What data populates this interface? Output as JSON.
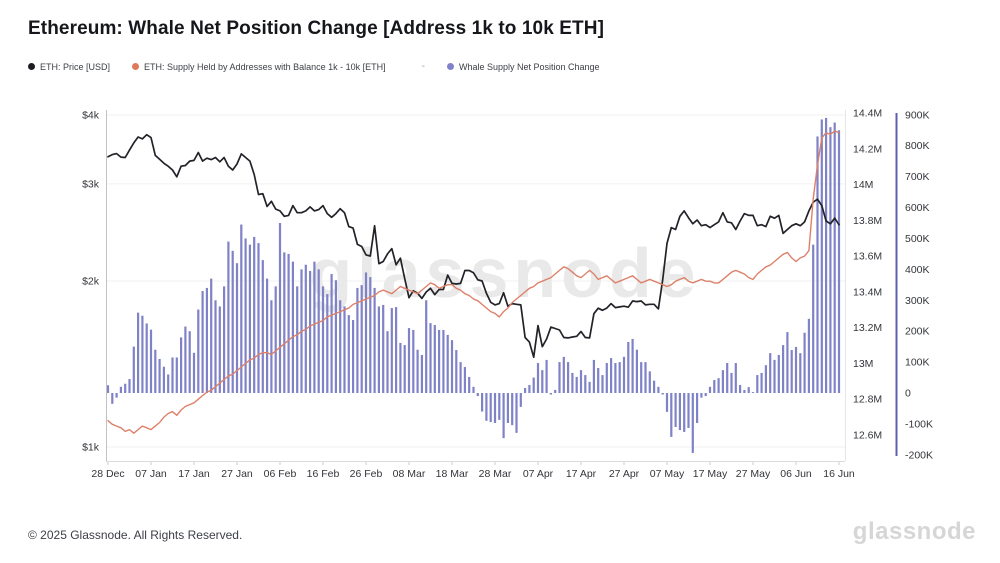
{
  "title": "Ethereum: Whale Net Position Change [Address 1k to 10k ETH]",
  "watermark": "glassnode",
  "footer": {
    "copyright": "© 2025 Glassnode. All Rights Reserved.",
    "brand": "glassnode"
  },
  "legend": [
    {
      "id": "eth-price",
      "label": "ETH: Price [USD]",
      "color": "#1c1d22",
      "marker": "dot"
    },
    {
      "id": "eth-supply-1k-10k",
      "label": "ETH: Supply Held by Addresses with Balance 1k - 10k [ETH]",
      "color": "#e0795c",
      "marker": "dot"
    },
    {
      "id": "whale-net-position-change",
      "label": "Whale Supply Net Position Change",
      "color": "#7f82c6",
      "marker": "dot",
      "separator_before": "-"
    }
  ],
  "chart_data": {
    "type": "mixed",
    "title": "Ethereum: Whale Net Position Change [Address 1k to 10k ETH]",
    "grid": "horizontal-faint",
    "x_axis": {
      "unit": "day",
      "tick_interval_days": 10,
      "tick_labels": [
        "28 Dec",
        "07 Jan",
        "17 Jan",
        "27 Jan",
        "06 Feb",
        "16 Feb",
        "26 Feb",
        "08 Mar",
        "18 Mar",
        "28 Mar",
        "07 Apr",
        "17 Apr",
        "27 Apr",
        "07 May",
        "17 May",
        "27 May",
        "06 Jun",
        "16 Jun"
      ]
    },
    "axes": {
      "price_usd": {
        "side": "left",
        "scale": "log",
        "ticks": [
          {
            "label": "$4k",
            "value": 4000
          },
          {
            "label": "$3k",
            "value": 3000
          },
          {
            "label": "$2k",
            "value": 2000
          },
          {
            "label": "$1k",
            "value": 1000
          }
        ]
      },
      "supply_eth": {
        "side": "right",
        "scale": "linear",
        "unit": "M",
        "ticks": [
          {
            "label": "14.4M",
            "value": 14.4
          },
          {
            "label": "14.2M",
            "value": 14.2
          },
          {
            "label": "14M",
            "value": 14.0
          },
          {
            "label": "13.8M",
            "value": 13.8
          },
          {
            "label": "13.6M",
            "value": 13.6
          },
          {
            "label": "13.4M",
            "value": 13.4
          },
          {
            "label": "13.2M",
            "value": 13.2
          },
          {
            "label": "13M",
            "value": 13.0
          },
          {
            "label": "12.8M",
            "value": 12.8
          },
          {
            "label": "12.6M",
            "value": 12.6
          }
        ]
      },
      "net_position_change": {
        "side": "far-right",
        "scale": "linear",
        "unit": "K",
        "axis_line_color": "#5a60ad",
        "ticks": [
          {
            "label": "900K",
            "value": 900
          },
          {
            "label": "800K",
            "value": 800
          },
          {
            "label": "700K",
            "value": 700
          },
          {
            "label": "600K",
            "value": 600
          },
          {
            "label": "500K",
            "value": 500
          },
          {
            "label": "400K",
            "value": 400
          },
          {
            "label": "300K",
            "value": 300
          },
          {
            "label": "200K",
            "value": 200
          },
          {
            "label": "100K",
            "value": 100
          },
          {
            "label": "0",
            "value": 0
          },
          {
            "label": "-100K",
            "value": -100
          },
          {
            "label": "-200K",
            "value": -200
          }
        ]
      }
    },
    "series": [
      {
        "name": "ETH: Price [USD]",
        "type": "line",
        "axis": "price_usd",
        "color": "#222329",
        "values": [
          3360,
          3390,
          3405,
          3355,
          3350,
          3455,
          3560,
          3650,
          3620,
          3685,
          3640,
          3380,
          3325,
          3270,
          3230,
          3180,
          3090,
          3230,
          3240,
          3300,
          3310,
          3420,
          3300,
          3340,
          3320,
          3350,
          3290,
          3350,
          3230,
          3180,
          3260,
          3400,
          3350,
          3300,
          3120,
          2870,
          2880,
          2730,
          2790,
          2700,
          2680,
          2620,
          2630,
          2740,
          2660,
          2660,
          2680,
          2725,
          2680,
          2695,
          2740,
          2650,
          2610,
          2650,
          2705,
          2660,
          2510,
          2495,
          2330,
          2310,
          2230,
          2220,
          2520,
          2150,
          2170,
          2240,
          2290,
          2140,
          2200,
          2020,
          1865,
          1920,
          1900,
          1860,
          1910,
          1940,
          1890,
          1930,
          1930,
          2050,
          1980,
          1975,
          1980,
          2090,
          2090,
          2070,
          2010,
          2000,
          1900,
          1830,
          1810,
          1820,
          1905,
          1800,
          1820,
          1815,
          1810,
          1580,
          1550,
          1455,
          1660,
          1520,
          1570,
          1650,
          1640,
          1630,
          1580,
          1577,
          1583,
          1588,
          1620,
          1580,
          1577,
          1745,
          1785,
          1770,
          1786,
          1820,
          1790,
          1795,
          1800,
          1793,
          1840,
          1835,
          1840,
          1810,
          1815,
          1815,
          1780,
          2010,
          2340,
          2500,
          2480,
          2620,
          2680,
          2605,
          2540,
          2580,
          2520,
          2530,
          2500,
          2530,
          2560,
          2660,
          2560,
          2550,
          2480,
          2570,
          2650,
          2630,
          2630,
          2520,
          2530,
          2510,
          2620,
          2600,
          2630,
          2440,
          2480,
          2520,
          2540,
          2520,
          2560,
          2680,
          2780,
          2815,
          2740,
          2570,
          2540,
          2600,
          2530
        ]
      },
      {
        "name": "ETH: Supply Held by Addresses with Balance 1k - 10k [ETH]",
        "type": "line",
        "axis": "supply_eth",
        "color": "#dd8069",
        "values": [
          12.68,
          12.66,
          12.65,
          12.64,
          12.62,
          12.63,
          12.61,
          12.63,
          12.65,
          12.64,
          12.63,
          12.65,
          12.67,
          12.7,
          12.72,
          12.73,
          12.71,
          12.74,
          12.76,
          12.77,
          12.78,
          12.8,
          12.82,
          12.84,
          12.85,
          12.87,
          12.89,
          12.91,
          12.93,
          12.94,
          12.96,
          12.98,
          13.0,
          13.02,
          13.03,
          13.05,
          13.06,
          13.06,
          13.05,
          13.07,
          13.09,
          13.11,
          13.13,
          13.15,
          13.16,
          13.18,
          13.19,
          13.21,
          13.22,
          13.23,
          13.24,
          13.26,
          13.27,
          13.28,
          13.29,
          13.3,
          13.31,
          13.33,
          13.34,
          13.35,
          13.36,
          13.37,
          13.38,
          13.4,
          13.41,
          13.4,
          13.39,
          13.41,
          13.43,
          13.42,
          13.41,
          13.4,
          13.39,
          13.41,
          13.43,
          13.45,
          13.44,
          13.42,
          13.43,
          13.44,
          13.44,
          13.42,
          13.41,
          13.39,
          13.38,
          13.36,
          13.35,
          13.33,
          13.31,
          13.29,
          13.28,
          13.26,
          13.29,
          13.31,
          13.34,
          13.36,
          13.38,
          13.4,
          13.42,
          13.43,
          13.45,
          13.46,
          13.47,
          13.48,
          13.5,
          13.52,
          13.54,
          13.53,
          13.51,
          13.49,
          13.48,
          13.5,
          13.52,
          13.5,
          13.47,
          13.48,
          13.49,
          13.47,
          13.45,
          13.46,
          13.47,
          13.48,
          13.49,
          13.47,
          13.45,
          13.46,
          13.47,
          13.46,
          13.45,
          13.44,
          13.43,
          13.44,
          13.46,
          13.47,
          13.48,
          13.46,
          13.45,
          13.46,
          13.47,
          13.46,
          13.46,
          13.45,
          13.45,
          13.47,
          13.49,
          13.51,
          13.52,
          13.51,
          13.5,
          13.48,
          13.47,
          13.5,
          13.52,
          13.54,
          13.55,
          13.57,
          13.59,
          13.61,
          13.62,
          13.59,
          13.57,
          13.59,
          13.6,
          13.63,
          13.92,
          14.11,
          14.26,
          14.29,
          14.28,
          14.3,
          14.29
        ]
      },
      {
        "name": "Whale Supply Net Position Change",
        "type": "bar",
        "axis": "net_position_change",
        "color": "#7f82c6",
        "values": [
          25,
          -35,
          -15,
          20,
          30,
          45,
          150,
          260,
          250,
          225,
          205,
          140,
          110,
          85,
          60,
          115,
          115,
          180,
          215,
          200,
          130,
          270,
          330,
          340,
          370,
          300,
          280,
          345,
          490,
          460,
          420,
          545,
          500,
          480,
          505,
          485,
          430,
          370,
          300,
          345,
          550,
          455,
          450,
          425,
          345,
          400,
          415,
          395,
          425,
          400,
          345,
          320,
          385,
          365,
          300,
          280,
          252,
          236,
          340,
          349,
          390,
          375,
          340,
          280,
          285,
          200,
          275,
          278,
          162,
          155,
          210,
          204,
          140,
          123,
          300,
          226,
          220,
          204,
          204,
          188,
          171,
          139,
          100,
          84,
          52,
          20,
          -10,
          -60,
          -90,
          -94,
          -97,
          -87,
          -146,
          -97,
          -104,
          -129,
          -45,
          16,
          26,
          50,
          97,
          74,
          107,
          -5,
          10,
          100,
          117,
          100,
          65,
          52,
          74,
          58,
          36,
          107,
          81,
          58,
          97,
          113,
          97,
          100,
          117,
          165,
          175,
          140,
          100,
          100,
          70,
          40,
          20,
          -5,
          -61,
          -142,
          -110,
          -120,
          -126,
          -113,
          -194,
          -97,
          -15,
          -10,
          20,
          42,
          48,
          74,
          97,
          65,
          97,
          26,
          10,
          19,
          3,
          58,
          65,
          90,
          129,
          107,
          123,
          155,
          197,
          139,
          149,
          129,
          195,
          240,
          480,
          830,
          885,
          890,
          860,
          875,
          850
        ]
      }
    ]
  }
}
